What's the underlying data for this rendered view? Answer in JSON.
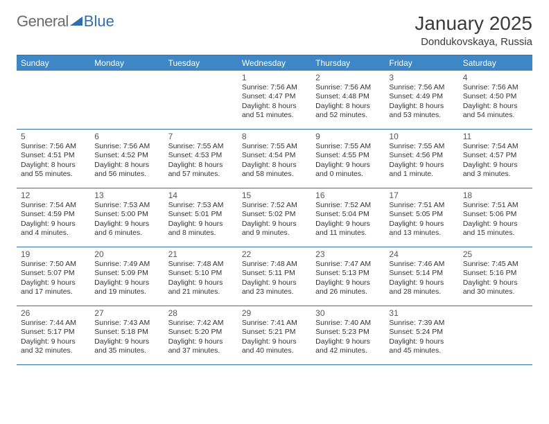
{
  "logo": {
    "word1": "General",
    "word2": "Blue"
  },
  "title": "January 2025",
  "subtitle": "Dondukovskaya, Russia",
  "colors": {
    "header_bg": "#3d87c7",
    "border": "#2f6fb0",
    "logo_gray": "#6a6a6a",
    "logo_blue": "#2f6fb0",
    "text": "#333333",
    "title": "#3a3a3a",
    "bg": "#ffffff"
  },
  "day_names": [
    "Sunday",
    "Monday",
    "Tuesday",
    "Wednesday",
    "Thursday",
    "Friday",
    "Saturday"
  ],
  "weeks": [
    [
      null,
      null,
      null,
      {
        "n": "1",
        "sunrise": "7:56 AM",
        "sunset": "4:47 PM",
        "dl_h": "8",
        "dl_m": "51"
      },
      {
        "n": "2",
        "sunrise": "7:56 AM",
        "sunset": "4:48 PM",
        "dl_h": "8",
        "dl_m": "52"
      },
      {
        "n": "3",
        "sunrise": "7:56 AM",
        "sunset": "4:49 PM",
        "dl_h": "8",
        "dl_m": "53"
      },
      {
        "n": "4",
        "sunrise": "7:56 AM",
        "sunset": "4:50 PM",
        "dl_h": "8",
        "dl_m": "54"
      }
    ],
    [
      {
        "n": "5",
        "sunrise": "7:56 AM",
        "sunset": "4:51 PM",
        "dl_h": "8",
        "dl_m": "55"
      },
      {
        "n": "6",
        "sunrise": "7:56 AM",
        "sunset": "4:52 PM",
        "dl_h": "8",
        "dl_m": "56"
      },
      {
        "n": "7",
        "sunrise": "7:55 AM",
        "sunset": "4:53 PM",
        "dl_h": "8",
        "dl_m": "57"
      },
      {
        "n": "8",
        "sunrise": "7:55 AM",
        "sunset": "4:54 PM",
        "dl_h": "8",
        "dl_m": "58"
      },
      {
        "n": "9",
        "sunrise": "7:55 AM",
        "sunset": "4:55 PM",
        "dl_h": "9",
        "dl_m": "0"
      },
      {
        "n": "10",
        "sunrise": "7:55 AM",
        "sunset": "4:56 PM",
        "dl_h": "9",
        "dl_m": "1"
      },
      {
        "n": "11",
        "sunrise": "7:54 AM",
        "sunset": "4:57 PM",
        "dl_h": "9",
        "dl_m": "3"
      }
    ],
    [
      {
        "n": "12",
        "sunrise": "7:54 AM",
        "sunset": "4:59 PM",
        "dl_h": "9",
        "dl_m": "4"
      },
      {
        "n": "13",
        "sunrise": "7:53 AM",
        "sunset": "5:00 PM",
        "dl_h": "9",
        "dl_m": "6"
      },
      {
        "n": "14",
        "sunrise": "7:53 AM",
        "sunset": "5:01 PM",
        "dl_h": "9",
        "dl_m": "8"
      },
      {
        "n": "15",
        "sunrise": "7:52 AM",
        "sunset": "5:02 PM",
        "dl_h": "9",
        "dl_m": "9"
      },
      {
        "n": "16",
        "sunrise": "7:52 AM",
        "sunset": "5:04 PM",
        "dl_h": "9",
        "dl_m": "11"
      },
      {
        "n": "17",
        "sunrise": "7:51 AM",
        "sunset": "5:05 PM",
        "dl_h": "9",
        "dl_m": "13"
      },
      {
        "n": "18",
        "sunrise": "7:51 AM",
        "sunset": "5:06 PM",
        "dl_h": "9",
        "dl_m": "15"
      }
    ],
    [
      {
        "n": "19",
        "sunrise": "7:50 AM",
        "sunset": "5:07 PM",
        "dl_h": "9",
        "dl_m": "17"
      },
      {
        "n": "20",
        "sunrise": "7:49 AM",
        "sunset": "5:09 PM",
        "dl_h": "9",
        "dl_m": "19"
      },
      {
        "n": "21",
        "sunrise": "7:48 AM",
        "sunset": "5:10 PM",
        "dl_h": "9",
        "dl_m": "21"
      },
      {
        "n": "22",
        "sunrise": "7:48 AM",
        "sunset": "5:11 PM",
        "dl_h": "9",
        "dl_m": "23"
      },
      {
        "n": "23",
        "sunrise": "7:47 AM",
        "sunset": "5:13 PM",
        "dl_h": "9",
        "dl_m": "26"
      },
      {
        "n": "24",
        "sunrise": "7:46 AM",
        "sunset": "5:14 PM",
        "dl_h": "9",
        "dl_m": "28"
      },
      {
        "n": "25",
        "sunrise": "7:45 AM",
        "sunset": "5:16 PM",
        "dl_h": "9",
        "dl_m": "30"
      }
    ],
    [
      {
        "n": "26",
        "sunrise": "7:44 AM",
        "sunset": "5:17 PM",
        "dl_h": "9",
        "dl_m": "32"
      },
      {
        "n": "27",
        "sunrise": "7:43 AM",
        "sunset": "5:18 PM",
        "dl_h": "9",
        "dl_m": "35"
      },
      {
        "n": "28",
        "sunrise": "7:42 AM",
        "sunset": "5:20 PM",
        "dl_h": "9",
        "dl_m": "37"
      },
      {
        "n": "29",
        "sunrise": "7:41 AM",
        "sunset": "5:21 PM",
        "dl_h": "9",
        "dl_m": "40"
      },
      {
        "n": "30",
        "sunrise": "7:40 AM",
        "sunset": "5:23 PM",
        "dl_h": "9",
        "dl_m": "42"
      },
      {
        "n": "31",
        "sunrise": "7:39 AM",
        "sunset": "5:24 PM",
        "dl_h": "9",
        "dl_m": "45"
      },
      null
    ]
  ]
}
